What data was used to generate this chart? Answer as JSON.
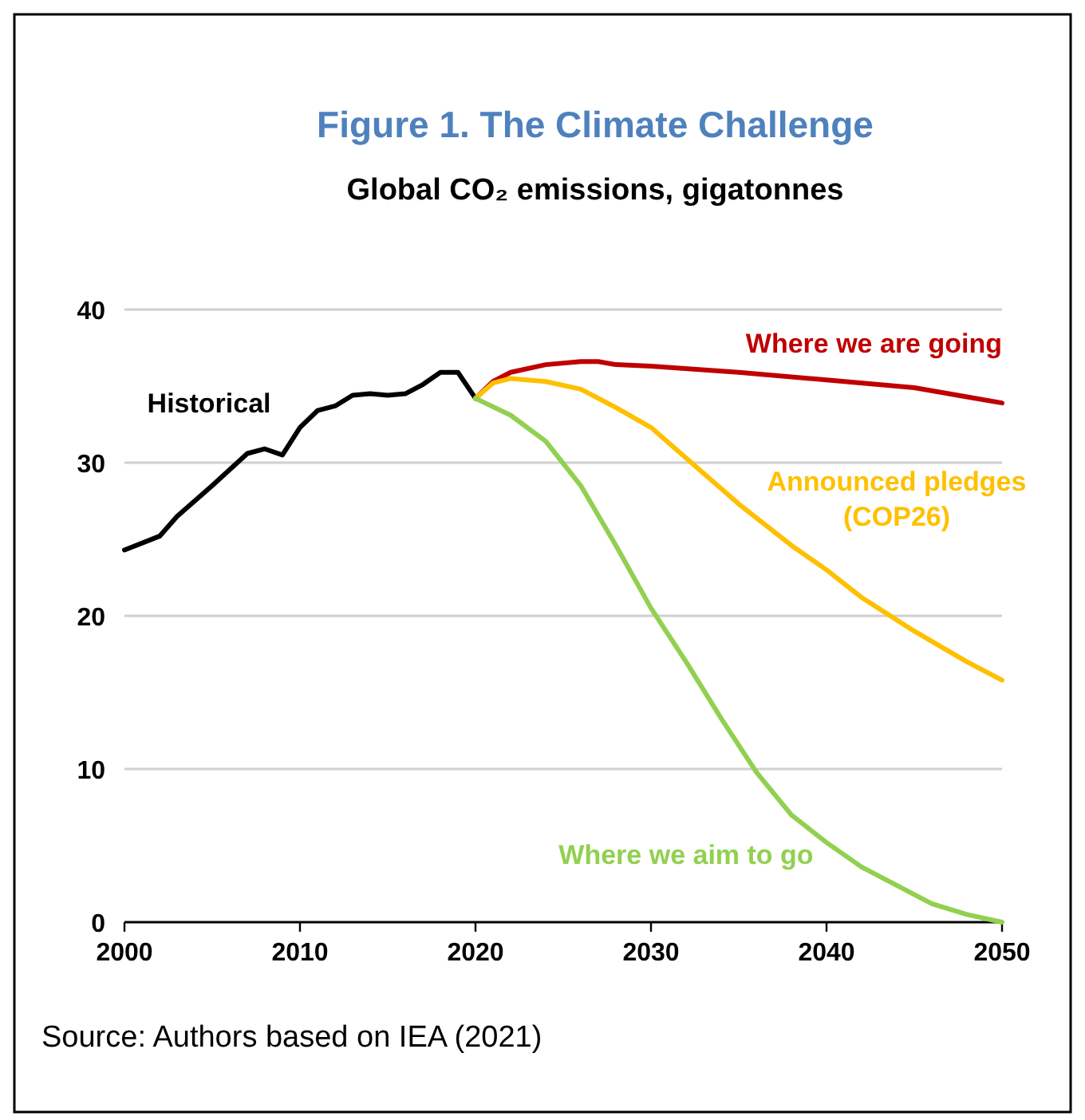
{
  "chart_data": {
    "type": "line",
    "title": "Figure 1. The Climate Challenge",
    "subtitle": "Global CO₂ emissions, gigatonnes",
    "annotations": [
      "Source: Authors based on IEA (2021)"
    ],
    "xlim": [
      2000,
      2050
    ],
    "xticks": [
      2000,
      2010,
      2020,
      2030,
      2040,
      2050
    ],
    "ylim": [
      0,
      40
    ],
    "yticks": [
      0,
      10,
      20,
      30,
      40
    ],
    "grid": "y",
    "marker": "none",
    "line_style": "solid",
    "series": [
      {
        "name": "Historical",
        "color": "#000000",
        "x": [
          2000,
          2002,
          2003,
          2005,
          2007,
          2008,
          2009,
          2010,
          2011,
          2012,
          2013,
          2014,
          2015,
          2016,
          2017,
          2018,
          2019,
          2020
        ],
        "values": [
          24.3,
          25.2,
          26.5,
          28.5,
          30.6,
          30.9,
          30.5,
          32.3,
          33.4,
          33.7,
          34.4,
          34.5,
          34.4,
          34.5,
          35.1,
          35.9,
          35.9,
          34.2
        ]
      },
      {
        "name": "Where we are going",
        "color": "#c00000",
        "x": [
          2020,
          2021,
          2022,
          2024,
          2026,
          2027,
          2028,
          2030,
          2035,
          2040,
          2045,
          2048,
          2050
        ],
        "values": [
          34.2,
          35.3,
          35.9,
          36.4,
          36.6,
          36.6,
          36.4,
          36.3,
          35.9,
          35.4,
          34.9,
          34.3,
          33.9
        ]
      },
      {
        "name": "Announced pledges (COP26)",
        "color": "#ffc000",
        "x": [
          2020,
          2021,
          2022,
          2024,
          2026,
          2028,
          2030,
          2032,
          2035,
          2038,
          2040,
          2042,
          2045,
          2048,
          2050
        ],
        "values": [
          34.2,
          35.2,
          35.5,
          35.3,
          34.8,
          33.6,
          32.3,
          30.3,
          27.3,
          24.6,
          23.0,
          21.2,
          19.0,
          17.0,
          15.8
        ]
      },
      {
        "name": "Where we aim to go",
        "color": "#92d050",
        "x": [
          2020,
          2022,
          2024,
          2026,
          2028,
          2030,
          2032,
          2034,
          2036,
          2038,
          2040,
          2042,
          2044,
          2046,
          2048,
          2050
        ],
        "values": [
          34.2,
          33.1,
          31.4,
          28.5,
          24.6,
          20.5,
          17.0,
          13.3,
          9.8,
          7.0,
          5.2,
          3.6,
          2.4,
          1.2,
          0.5,
          0
        ]
      }
    ]
  }
}
